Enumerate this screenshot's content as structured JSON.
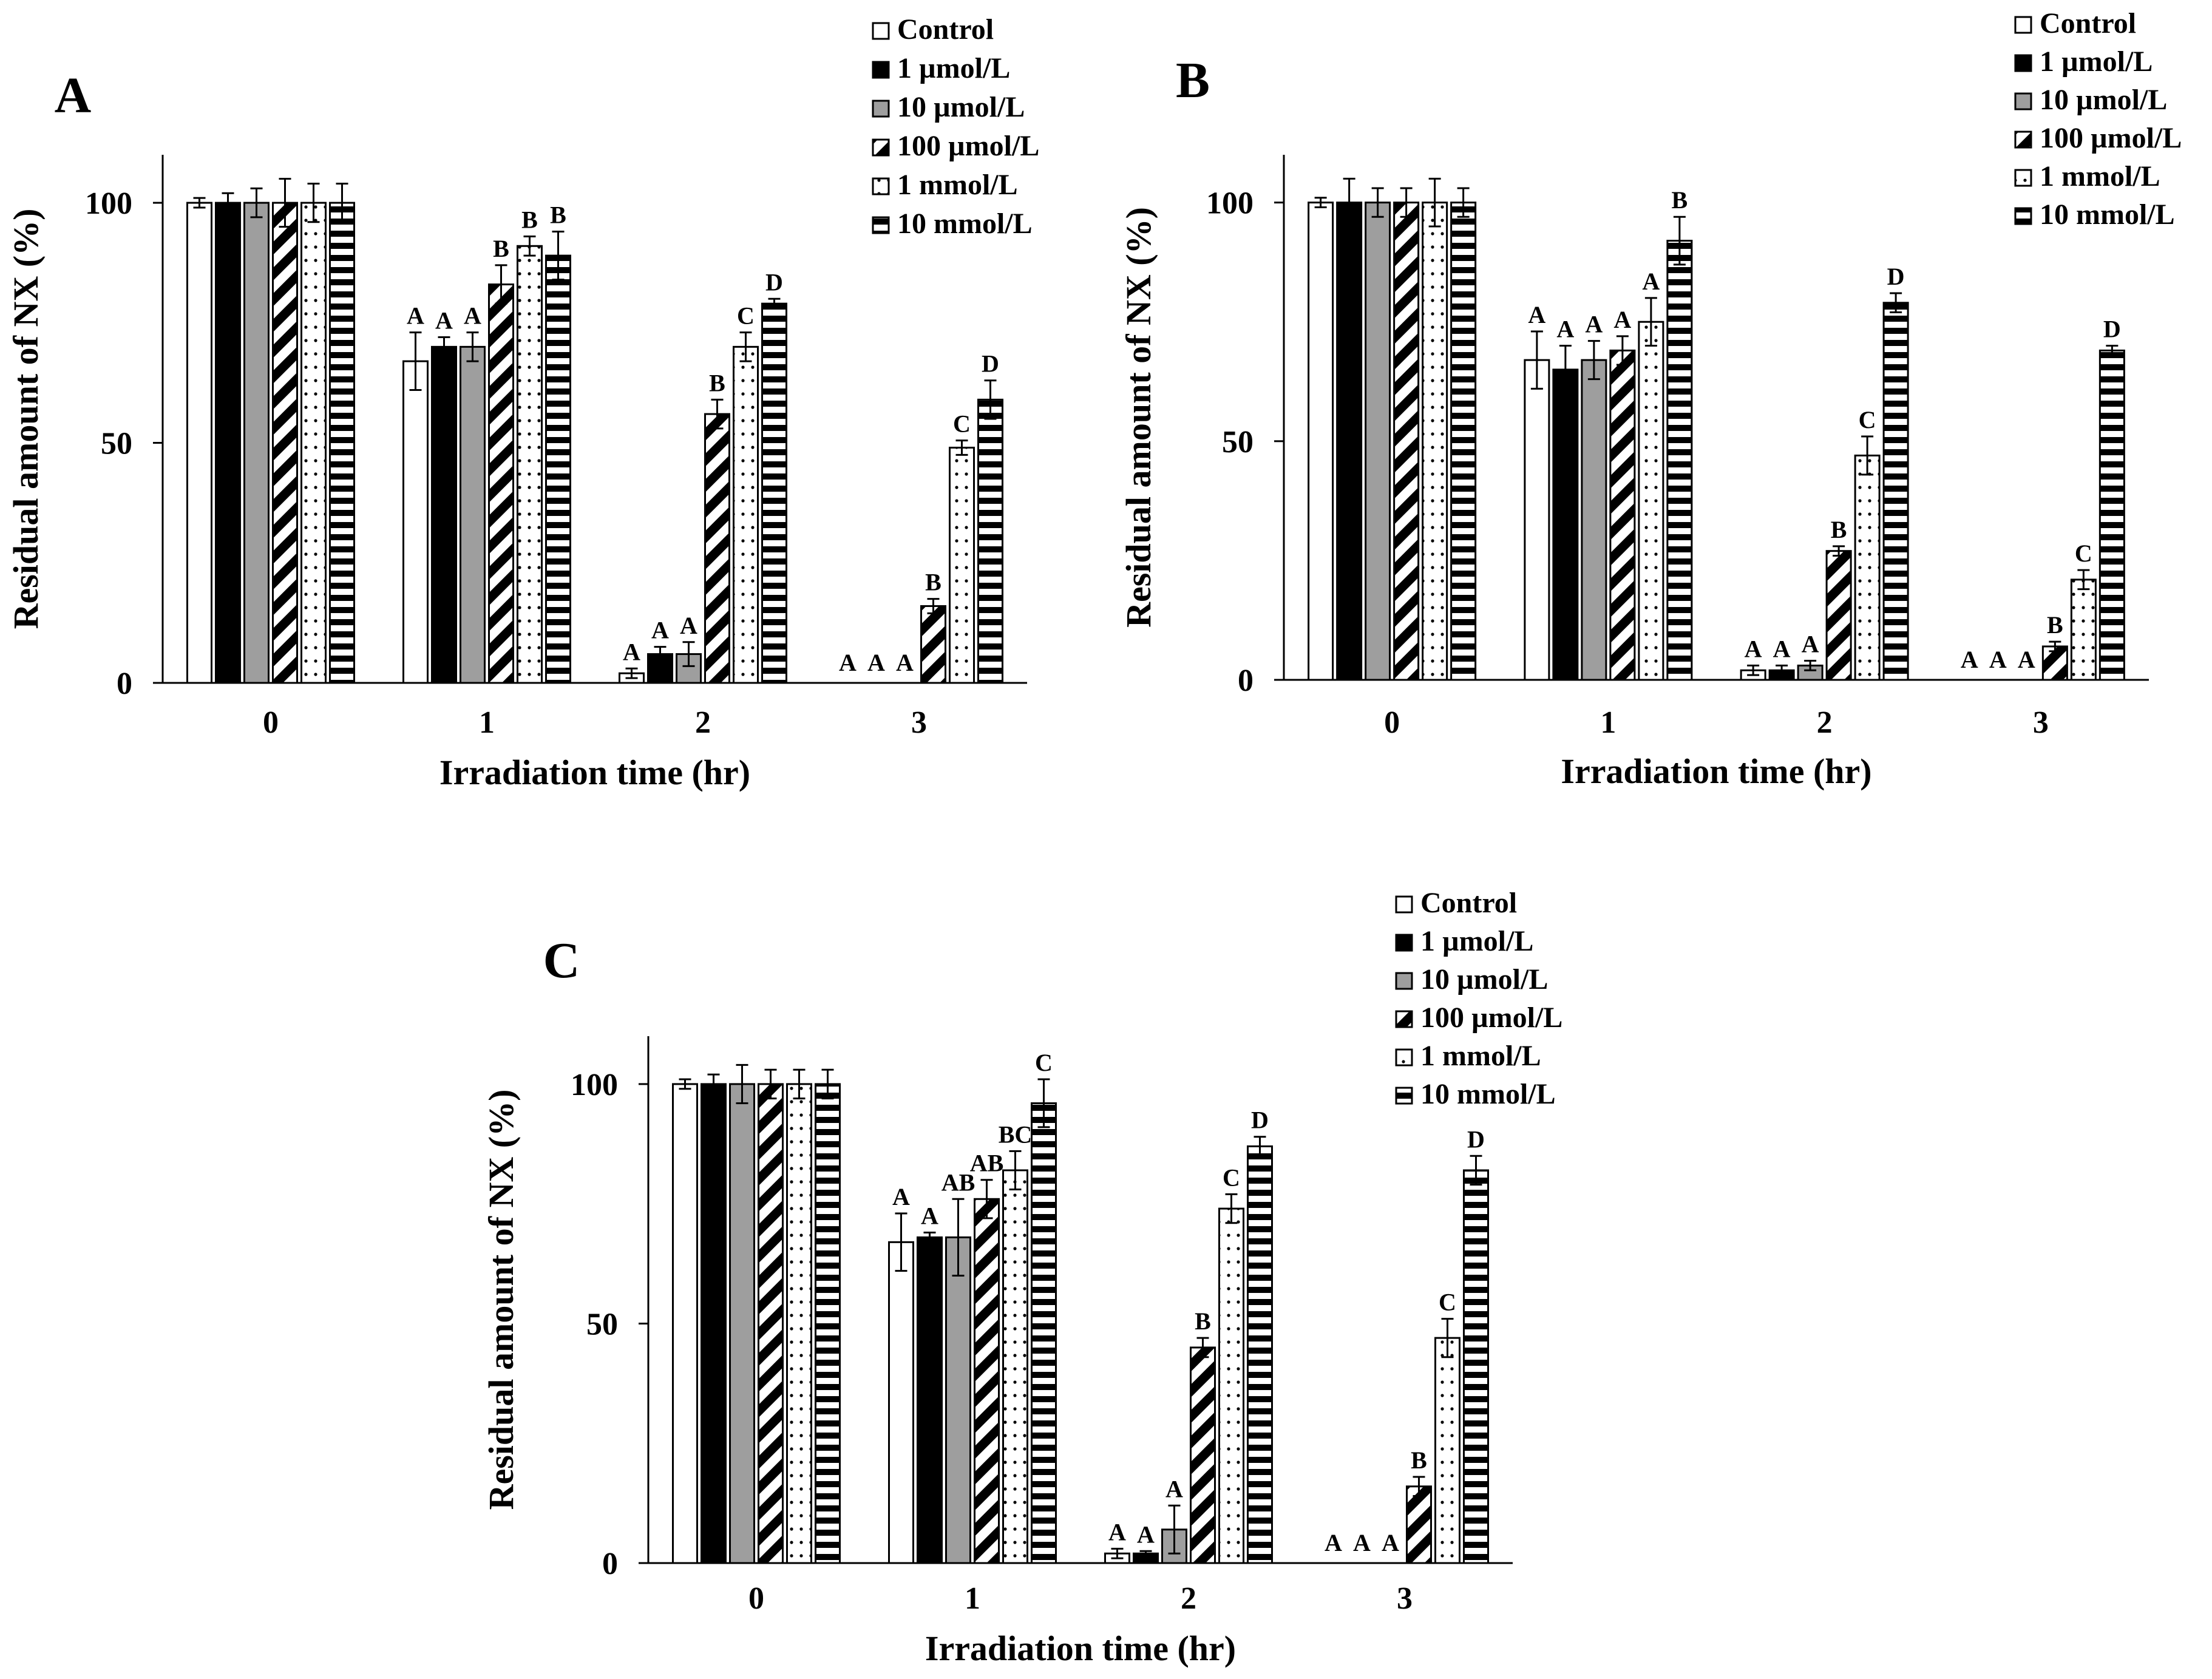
{
  "legend_labels": [
    "Control",
    "1 µmol/L",
    "10 µmol/L",
    "100 µmol/L",
    "1 mmol/L",
    "10 mmol/L"
  ],
  "colors": {
    "ink": "#000000",
    "paper": "#ffffff",
    "gray_fill": "#9e9e9e"
  },
  "chart_data": [
    {
      "panel_label": "A",
      "type": "bar",
      "xlabel": "Irradiation time (hr)",
      "ylabel": "Residual amount of NX (%)",
      "categories": [
        "0",
        "1",
        "2",
        "3"
      ],
      "ylim": [
        0,
        110
      ],
      "yticks": [
        0,
        50,
        100
      ],
      "legend_position": "top-right",
      "series": [
        {
          "name": "Control",
          "values": [
            100,
            67,
            2,
            0
          ],
          "errors": [
            1,
            6,
            1,
            0
          ],
          "letters": [
            "",
            "A",
            "A",
            "A"
          ]
        },
        {
          "name": "1 µmol/L",
          "values": [
            100,
            70,
            6,
            0
          ],
          "errors": [
            2,
            2,
            1.5,
            0
          ],
          "letters": [
            "",
            "A",
            "A",
            "A"
          ]
        },
        {
          "name": "10 µmol/L",
          "values": [
            100,
            70,
            6,
            0
          ],
          "errors": [
            3,
            3,
            2.5,
            0
          ],
          "letters": [
            "",
            "A",
            "A",
            "A"
          ]
        },
        {
          "name": "100 µmol/L",
          "values": [
            100,
            83,
            56,
            16
          ],
          "errors": [
            5,
            4,
            3,
            1.5
          ],
          "letters": [
            "",
            "B",
            "B",
            "B"
          ]
        },
        {
          "name": "1 mmol/L",
          "values": [
            100,
            91,
            70,
            49
          ],
          "errors": [
            4,
            2,
            3,
            1.5
          ],
          "letters": [
            "",
            "B",
            "C",
            "C"
          ]
        },
        {
          "name": "10 mmol/L",
          "values": [
            100,
            89,
            79,
            59
          ],
          "errors": [
            4,
            5,
            1,
            4
          ],
          "letters": [
            "",
            "B",
            "D",
            "D"
          ]
        }
      ]
    },
    {
      "panel_label": "B",
      "type": "bar",
      "xlabel": "Irradiation time (hr)",
      "ylabel": "Residual amount of NX (%)",
      "categories": [
        "0",
        "1",
        "2",
        "3"
      ],
      "ylim": [
        0,
        110
      ],
      "yticks": [
        0,
        50,
        100
      ],
      "legend_position": "top-right",
      "series": [
        {
          "name": "Control",
          "values": [
            100,
            67,
            2,
            0
          ],
          "errors": [
            1,
            6,
            1,
            0
          ],
          "letters": [
            "",
            "A",
            "A",
            "A"
          ]
        },
        {
          "name": "1 µmol/L",
          "values": [
            100,
            65,
            2,
            0
          ],
          "errors": [
            5,
            5,
            1,
            0
          ],
          "letters": [
            "",
            "A",
            "A",
            "A"
          ]
        },
        {
          "name": "10 µmol/L",
          "values": [
            100,
            67,
            3,
            0
          ],
          "errors": [
            3,
            4,
            1,
            0
          ],
          "letters": [
            "",
            "A",
            "A",
            "A"
          ]
        },
        {
          "name": "100 µmol/L",
          "values": [
            100,
            69,
            27,
            7
          ],
          "errors": [
            3,
            3,
            1,
            1
          ],
          "letters": [
            "",
            "A",
            "B",
            "B"
          ]
        },
        {
          "name": "1 mmol/L",
          "values": [
            100,
            75,
            47,
            21
          ],
          "errors": [
            5,
            5,
            4,
            2
          ],
          "letters": [
            "",
            "A",
            "C",
            "C"
          ]
        },
        {
          "name": "10 mmol/L",
          "values": [
            100,
            92,
            79,
            69
          ],
          "errors": [
            3,
            5,
            2,
            1
          ],
          "letters": [
            "",
            "B",
            "D",
            "D"
          ]
        }
      ]
    },
    {
      "panel_label": "C",
      "type": "bar",
      "xlabel": "Irradiation time (hr)",
      "ylabel": "Residual amount of NX (%)",
      "categories": [
        "0",
        "1",
        "2",
        "3"
      ],
      "ylim": [
        0,
        110
      ],
      "yticks": [
        0,
        50,
        100
      ],
      "legend_position": "top-right",
      "series": [
        {
          "name": "Control",
          "values": [
            100,
            67,
            2,
            0
          ],
          "errors": [
            1,
            6,
            1,
            0
          ],
          "letters": [
            "",
            "A",
            "A",
            "A"
          ]
        },
        {
          "name": "1 µmol/L",
          "values": [
            100,
            68,
            2,
            0
          ],
          "errors": [
            2,
            1,
            0.5,
            0
          ],
          "letters": [
            "",
            "A",
            "A",
            "A"
          ]
        },
        {
          "name": "10 µmol/L",
          "values": [
            100,
            68,
            7,
            0
          ],
          "errors": [
            4,
            8,
            5,
            0
          ],
          "letters": [
            "",
            "AB",
            "A",
            "A"
          ]
        },
        {
          "name": "100 µmol/L",
          "values": [
            100,
            76,
            45,
            16
          ],
          "errors": [
            3,
            4,
            2,
            2
          ],
          "letters": [
            "",
            "AB",
            "B",
            "B"
          ]
        },
        {
          "name": "1 mmol/L",
          "values": [
            100,
            82,
            74,
            47
          ],
          "errors": [
            3,
            4,
            3,
            4
          ],
          "letters": [
            "",
            "BC",
            "C",
            "C"
          ]
        },
        {
          "name": "10 mmol/L",
          "values": [
            100,
            96,
            87,
            82
          ],
          "errors": [
            3,
            5,
            2,
            3
          ],
          "letters": [
            "",
            "C",
            "D",
            "D"
          ]
        }
      ]
    }
  ]
}
